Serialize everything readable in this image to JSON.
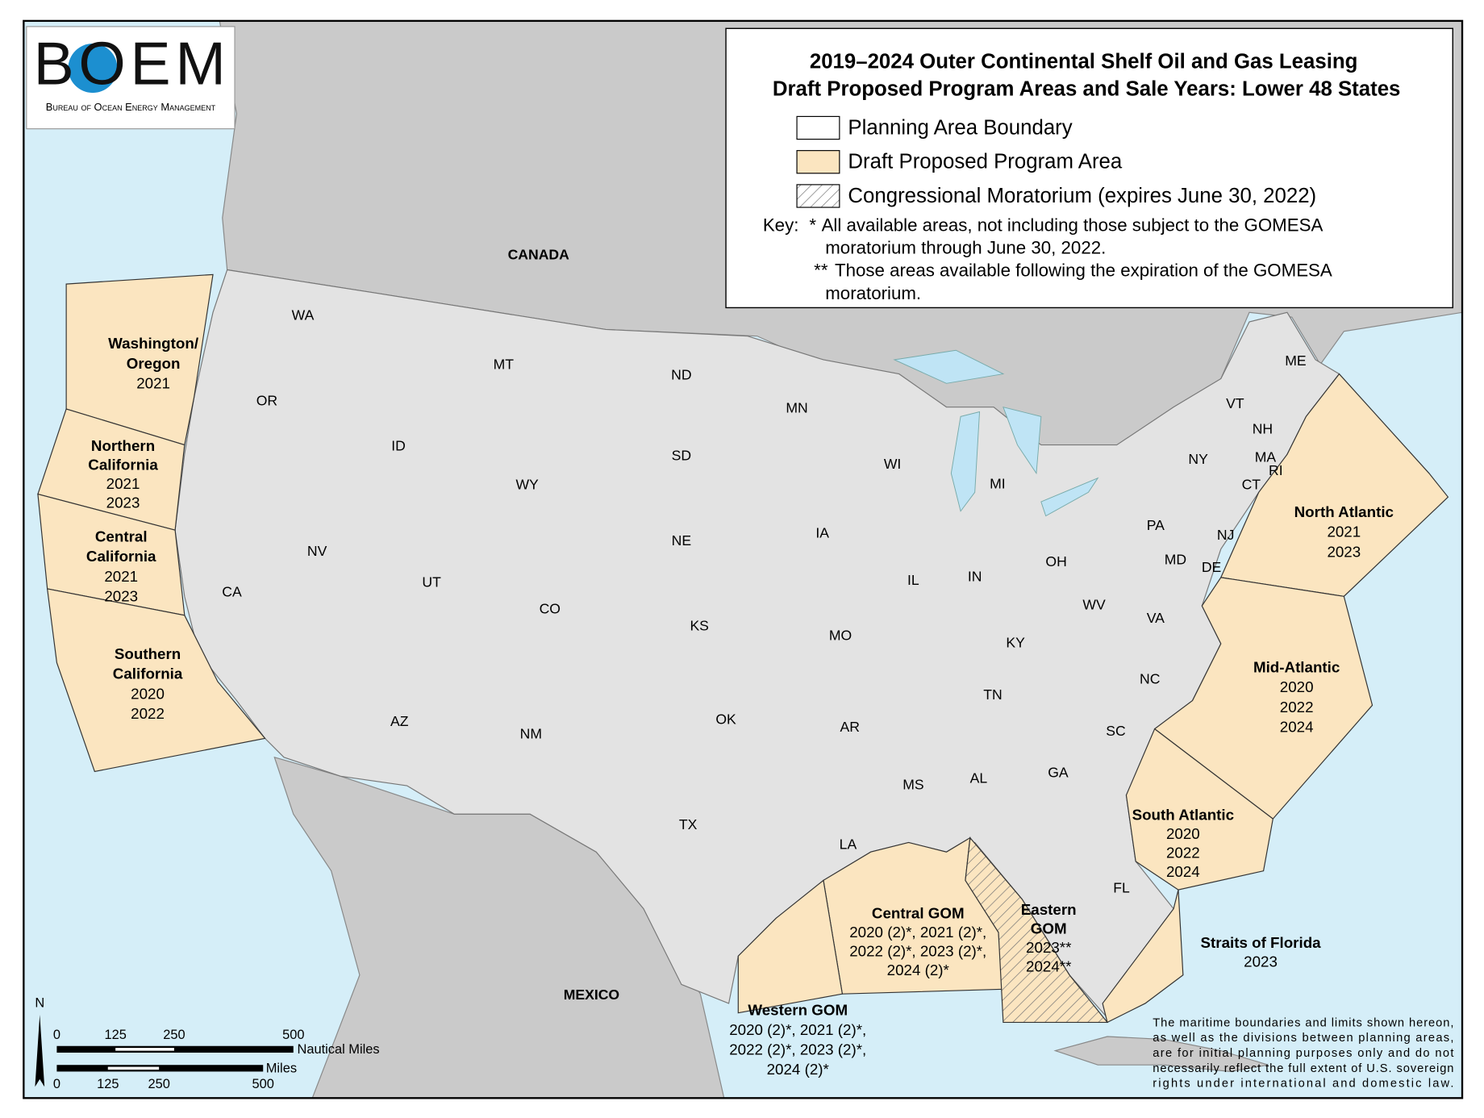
{
  "logo": {
    "acronym": "BOEM",
    "name": "Bureau of Ocean Energy Management"
  },
  "legend": {
    "title": [
      "2019–2024 Outer Continental Shelf Oil and Gas Leasing",
      "Draft Proposed Program Areas and Sale Years: Lower 48 States"
    ],
    "items": [
      "Planning Area Boundary",
      "Draft Proposed Program Area",
      "Congressional Moratorium (expires June 30, 2022)"
    ],
    "key_label": "Key:",
    "notes": [
      {
        "mark": "*",
        "lines": [
          "All available areas, not including those subject to the GOMESA",
          "moratorium through June 30, 2022."
        ]
      },
      {
        "mark": "**",
        "lines": [
          "Those areas available following the expiration of the GOMESA",
          "moratorium."
        ]
      }
    ]
  },
  "countries": [
    "CANADA",
    "MEXICO"
  ],
  "states": [
    "WA",
    "OR",
    "CA",
    "ID",
    "NV",
    "MT",
    "WY",
    "UT",
    "AZ",
    "CO",
    "NM",
    "ND",
    "SD",
    "NE",
    "KS",
    "OK",
    "TX",
    "MN",
    "IA",
    "MO",
    "AR",
    "LA",
    "WI",
    "IL",
    "MI",
    "IN",
    "OH",
    "KY",
    "TN",
    "MS",
    "AL",
    "GA",
    "FL",
    "SC",
    "NC",
    "VA",
    "WV",
    "PA",
    "NY",
    "VT",
    "NH",
    "ME",
    "MA",
    "RI",
    "CT",
    "NJ",
    "DE",
    "MD"
  ],
  "planning_areas": [
    {
      "name": [
        "Washington/",
        "Oregon"
      ],
      "years": [
        "2021"
      ]
    },
    {
      "name": [
        "Northern",
        "California"
      ],
      "years": [
        "2021",
        "2023"
      ]
    },
    {
      "name": [
        "Central",
        "California"
      ],
      "years": [
        "2021",
        "2023"
      ]
    },
    {
      "name": [
        "Southern",
        "California"
      ],
      "years": [
        "2020",
        "2022"
      ]
    },
    {
      "name": [
        "North Atlantic"
      ],
      "years": [
        "2021",
        "2023"
      ]
    },
    {
      "name": [
        "Mid-Atlantic"
      ],
      "years": [
        "2020",
        "2022",
        "2024"
      ]
    },
    {
      "name": [
        "South Atlantic"
      ],
      "years": [
        "2020",
        "2022",
        "2024"
      ]
    },
    {
      "name": [
        "Straits of Florida"
      ],
      "years": [
        "2023"
      ]
    },
    {
      "name": [
        "Eastern",
        "GOM"
      ],
      "years": [
        "2023**",
        "2024**"
      ]
    },
    {
      "name": [
        "Central GOM"
      ],
      "years": [
        "2020 (2)*, 2021 (2)*,",
        "2022 (2)*, 2023 (2)*,",
        "2024 (2)*"
      ]
    },
    {
      "name": [
        "Western GOM"
      ],
      "years": [
        "2020 (2)*, 2021 (2)*,",
        "2022 (2)*, 2023 (2)*,",
        "2024 (2)*"
      ]
    }
  ],
  "scale": {
    "north": "N",
    "nautical": {
      "ticks": [
        "0",
        "125",
        "250",
        "500"
      ],
      "unit": "Nautical Miles"
    },
    "miles": {
      "ticks": [
        "0",
        "125",
        "250",
        "500"
      ],
      "unit": "Miles"
    }
  },
  "disclaimer": [
    "The maritime boundaries and limits shown hereon,",
    "as well as the divisions between planning areas,",
    "are for initial planning purposes only and do not",
    "necessarily reflect the full extent of U.S. sovereign",
    "rights under international and domestic law."
  ]
}
